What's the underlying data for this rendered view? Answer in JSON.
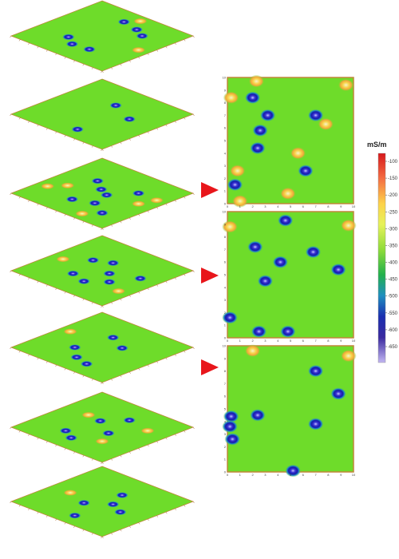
{
  "colorbar": {
    "unit": "mS/m",
    "ticks": [
      "-100",
      "-150",
      "-200",
      "-250",
      "-300",
      "-350",
      "-400",
      "-450",
      "-500",
      "-550",
      "-600",
      "-650"
    ],
    "colors": [
      "#d7191c",
      "#f46d43",
      "#fdae61",
      "#fee08b",
      "#d9ef8b",
      "#a6d96a",
      "#66bd63",
      "#1a9850",
      "#2c7fb8",
      "#253494",
      "#3f2f9e",
      "#8a6fd6",
      "#b9a7ef"
    ]
  },
  "colors": {
    "background_field": "#6edc2a",
    "high_anomaly": "#f3e34a",
    "low_anomaly": "#1b1fb8",
    "arrow": "#e8161b",
    "frame": "#c0863a"
  },
  "slice_axis_ticks": [
    "0",
    "1",
    "2",
    "3",
    "4",
    "5",
    "6",
    "7",
    "8",
    "9",
    "10"
  ],
  "stack_3d": [
    {
      "lows": [
        [
          0.42,
          0.18
        ],
        [
          0.6,
          0.22
        ],
        [
          0.72,
          0.28
        ],
        [
          0.33,
          0.7
        ],
        [
          0.45,
          0.78
        ],
        [
          0.62,
          0.76
        ]
      ],
      "highs": [
        [
          0.5,
          0.08
        ],
        [
          0.9,
          0.5
        ]
      ]
    },
    {
      "lows": [
        [
          0.45,
          0.3
        ],
        [
          0.72,
          0.42
        ],
        [
          0.58,
          0.85
        ]
      ],
      "highs": []
    },
    {
      "lows": [
        [
          0.3,
          0.35
        ],
        [
          0.44,
          0.45
        ],
        [
          0.55,
          0.5
        ],
        [
          0.7,
          0.3
        ],
        [
          0.42,
          0.75
        ],
        [
          0.6,
          0.68
        ],
        [
          0.78,
          0.78
        ]
      ],
      "highs": [
        [
          0.1,
          0.7
        ],
        [
          0.85,
          0.45
        ],
        [
          0.2,
          0.58
        ],
        [
          0.68,
          0.9
        ],
        [
          0.9,
          0.3
        ]
      ]
    },
    {
      "lows": [
        [
          0.3,
          0.4
        ],
        [
          0.45,
          0.33
        ],
        [
          0.58,
          0.5
        ],
        [
          0.7,
          0.62
        ],
        [
          0.38,
          0.7
        ],
        [
          0.55,
          0.75
        ],
        [
          0.82,
          0.4
        ]
      ],
      "highs": [
        [
          0.12,
          0.55
        ],
        [
          0.88,
          0.7
        ]
      ]
    },
    {
      "lows": [
        [
          0.42,
          0.3
        ],
        [
          0.62,
          0.4
        ],
        [
          0.35,
          0.65
        ],
        [
          0.5,
          0.78
        ],
        [
          0.65,
          0.82
        ]
      ],
      "highs": [
        [
          0.1,
          0.45
        ]
      ]
    },
    {
      "lows": [
        [
          0.55,
          0.25
        ],
        [
          0.4,
          0.42
        ],
        [
          0.62,
          0.55
        ],
        [
          0.35,
          0.75
        ],
        [
          0.48,
          0.82
        ]
      ],
      "highs": [
        [
          0.25,
          0.4
        ],
        [
          0.8,
          0.3
        ],
        [
          0.7,
          0.7
        ]
      ]
    },
    {
      "lows": [
        [
          0.52,
          0.3
        ],
        [
          0.6,
          0.48
        ],
        [
          0.42,
          0.62
        ],
        [
          0.55,
          0.85
        ],
        [
          0.75,
          0.55
        ]
      ],
      "highs": [
        [
          0.2,
          0.55
        ]
      ]
    }
  ],
  "slices_2d": [
    {
      "lows": [
        [
          2.0,
          8.4
        ],
        [
          3.2,
          7.0
        ],
        [
          7.0,
          7.0
        ],
        [
          2.6,
          5.8
        ],
        [
          2.4,
          4.4
        ],
        [
          0.6,
          1.5
        ],
        [
          6.2,
          2.6
        ]
      ],
      "highs": [
        [
          2.3,
          9.7
        ],
        [
          0.3,
          8.4
        ],
        [
          7.8,
          6.3
        ],
        [
          5.6,
          4.0
        ],
        [
          0.8,
          2.6
        ],
        [
          4.8,
          0.8
        ],
        [
          1.0,
          0.2
        ],
        [
          9.4,
          9.4
        ]
      ]
    },
    {
      "lows": [
        [
          4.6,
          9.3
        ],
        [
          2.2,
          7.2
        ],
        [
          4.2,
          6.0
        ],
        [
          6.8,
          6.8
        ],
        [
          8.8,
          5.4
        ],
        [
          3.0,
          4.5
        ],
        [
          0.2,
          1.6
        ],
        [
          2.5,
          0.5
        ],
        [
          4.8,
          0.5
        ]
      ],
      "highs": [
        [
          0.2,
          8.8
        ],
        [
          9.6,
          8.9
        ]
      ]
    },
    {
      "lows": [
        [
          7.0,
          8.0
        ],
        [
          8.8,
          6.2
        ],
        [
          2.4,
          4.5
        ],
        [
          7.0,
          3.8
        ],
        [
          0.3,
          4.4
        ],
        [
          0.2,
          3.6
        ],
        [
          0.4,
          2.6
        ],
        [
          5.2,
          0.1
        ]
      ],
      "highs": [
        [
          9.6,
          9.2
        ],
        [
          2.0,
          9.6
        ]
      ]
    }
  ]
}
